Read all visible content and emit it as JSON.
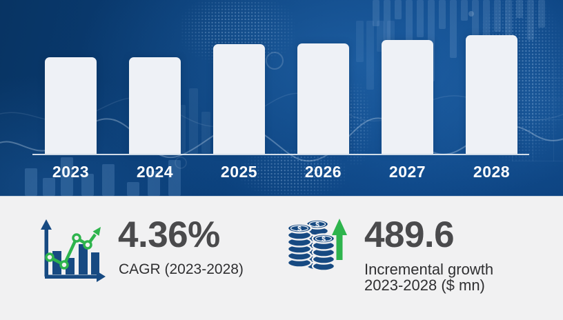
{
  "chart_data": {
    "type": "bar",
    "title": "",
    "xlabel": "",
    "ylabel": "",
    "categories": [
      "2023",
      "2024",
      "2025",
      "2026",
      "2027",
      "2028"
    ],
    "values": [
      140,
      140,
      159,
      160,
      165,
      172
    ],
    "values_unit": "relative bar height in px (chart shows no numeric axis)",
    "legend": "none",
    "grid": false,
    "bar_color": "#eef1f6",
    "category_label_color": "#ffffff",
    "axis_line_color": "#e2e9f1",
    "background_color": "#0a3e7b"
  },
  "stats": {
    "cagr": {
      "icon": "growth-chart-icon",
      "value": "4.36%",
      "label": "CAGR (2023-2028)"
    },
    "incremental": {
      "icon": "coins-up-arrow-icon",
      "value": "489.6",
      "label_line1": "Incremental growth",
      "label_line2": "2023-2028 ($ mn)"
    }
  },
  "colors": {
    "hero_background": "#0a3e7b",
    "panel_background": "#f1f1f2",
    "stat_value_text": "#4a4a4c",
    "stat_label_text": "#2f2f31",
    "accent_green": "#2eb44d",
    "icon_navy": "#174a82",
    "bar_fill": "#eef1f6"
  }
}
